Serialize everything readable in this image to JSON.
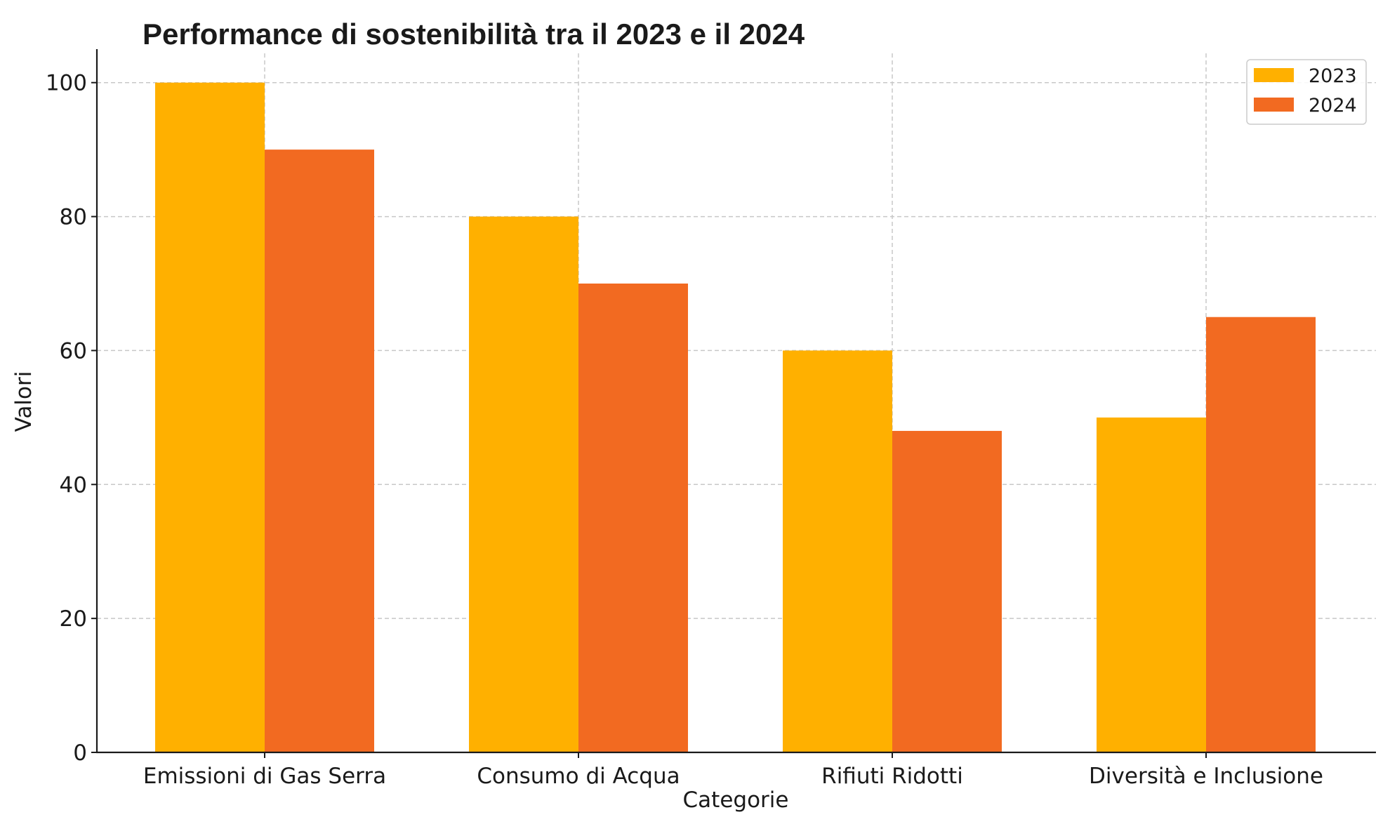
{
  "chart_data": {
    "type": "bar",
    "title": "Performance di sostenibilità tra il 2023 e il 2024",
    "xlabel": "Categorie",
    "ylabel": "Valori",
    "categories": [
      "Emissioni di Gas Serra",
      "Consumo di Acqua",
      "Rifiuti Ridotti",
      "Diversità e Inclusione"
    ],
    "series": [
      {
        "name": "2023",
        "color": "#ffb000",
        "values": [
          100,
          80,
          60,
          50
        ]
      },
      {
        "name": "2024",
        "color": "#f26a21",
        "values": [
          90,
          70,
          48,
          65
        ]
      }
    ],
    "ylim": [
      0,
      105
    ],
    "yticks": [
      0,
      20,
      40,
      60,
      80,
      100
    ],
    "grid": true,
    "grid_style": "dashed",
    "legend_position": "top-right"
  }
}
